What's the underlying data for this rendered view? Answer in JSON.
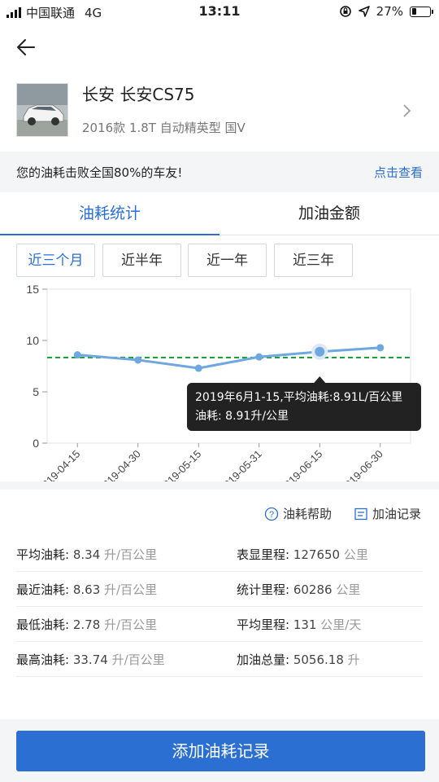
{
  "status_bar": {
    "carrier": "中国联通",
    "network": "4G",
    "time": "13:11",
    "battery": "27%",
    "battery_level": 0.27
  },
  "car": {
    "name": "长安 长安CS75",
    "spec": "2016款 1.8T 自动精英型 国V"
  },
  "rank": {
    "text": "您的油耗击败全国80%的车友!",
    "link": "点击查看"
  },
  "tabs": [
    {
      "label": "油耗统计",
      "active": true
    },
    {
      "label": "加油金额",
      "active": false
    }
  ],
  "periods": [
    {
      "label": "近三个月",
      "active": true
    },
    {
      "label": "近半年",
      "active": false
    },
    {
      "label": "近一年",
      "active": false
    },
    {
      "label": "近三年",
      "active": false
    }
  ],
  "chart_data": {
    "type": "line",
    "x": [
      "2019-04-15",
      "2019-04-30",
      "2019-05-15",
      "2019-05-31",
      "2019-06-15",
      "2019-06-30"
    ],
    "yticks": [
      0,
      5,
      10,
      15
    ],
    "ylim": [
      0,
      15
    ],
    "series": [
      {
        "values": [
          8.6,
          8.1,
          7.3,
          8.4,
          8.91,
          9.3
        ],
        "color": "#6fa8e0"
      }
    ],
    "reference_line": {
      "value": 8.34,
      "color": "#1fa23a",
      "style": "dashed"
    },
    "highlighted_index": 4,
    "tooltip": {
      "line1": "2019年6月1-15,平均油耗:8.91L/百公里",
      "line2": "油耗:  8.91升/公里"
    }
  },
  "help": {
    "help_label": "油耗帮助",
    "record_label": "加油记录"
  },
  "stats": [
    {
      "left": {
        "label": "平均油耗:",
        "value": "8.34",
        "unit": "升/百公里"
      },
      "right": {
        "label": "表显里程:",
        "value": "127650",
        "unit": "公里"
      }
    },
    {
      "left": {
        "label": "最近油耗:",
        "value": "8.63",
        "unit": "升/百公里"
      },
      "right": {
        "label": "统计里程:",
        "value": "60286",
        "unit": "公里"
      }
    },
    {
      "left": {
        "label": "最低油耗:",
        "value": "2.78",
        "unit": "升/百公里"
      },
      "right": {
        "label": "平均里程:",
        "value": "131",
        "unit": "公里/天"
      }
    },
    {
      "left": {
        "label": "最高油耗:",
        "value": "33.74",
        "unit": "升/百公里"
      },
      "right": {
        "label": "加油总量:",
        "value": "5056.18",
        "unit": "升"
      }
    }
  ],
  "add_button": "添加油耗记录",
  "colors": {
    "accent": "#2a6fd1",
    "line": "#6fa8e0",
    "reference": "#1fa23a",
    "tooltip_bg": "#222222"
  },
  "icons": [
    "signal-icon",
    "location-icon",
    "lock-rotation-icon",
    "battery-icon",
    "back-arrow-icon",
    "chevron-right-icon",
    "help-circle-icon",
    "list-icon"
  ]
}
